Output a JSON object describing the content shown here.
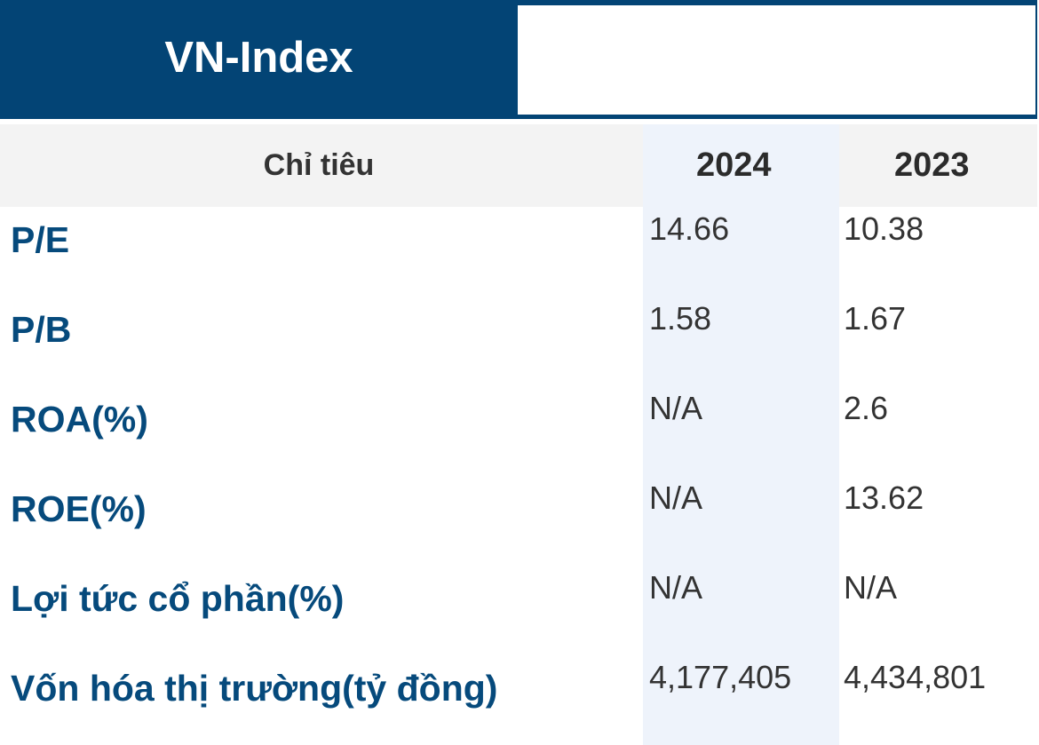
{
  "tabs": {
    "active_label": "VN-Index",
    "inactive_label": ""
  },
  "table": {
    "headers": {
      "indicator": "Chỉ tiêu",
      "col1": "2024",
      "col2": "2023"
    },
    "rows": [
      {
        "label": "P/E",
        "v2024": "14.66",
        "v2023": "10.38"
      },
      {
        "label": "P/B",
        "v2024": "1.58",
        "v2023": "1.67"
      },
      {
        "label": "ROA(%)",
        "v2024": "N/A",
        "v2023": "2.6"
      },
      {
        "label": "ROE(%)",
        "v2024": "N/A",
        "v2023": "13.62"
      },
      {
        "label": "Lợi tức cổ phần(%)",
        "v2024": "N/A",
        "v2023": "N/A"
      },
      {
        "label": "Vốn hóa thị trường(tỷ đồng)",
        "v2024": "4,177,405",
        "v2023": "4,434,801"
      }
    ]
  },
  "colors": {
    "brand": "#034475",
    "label_text": "#064a7c",
    "header_bg": "#f3f3f3",
    "highlight_col": "#eef3fb"
  }
}
